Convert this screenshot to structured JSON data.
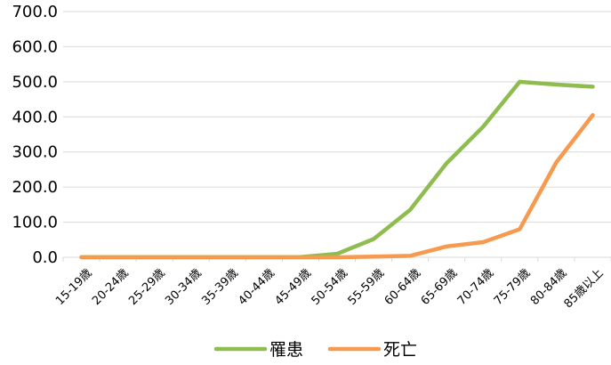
{
  "chart_data": {
    "type": "line",
    "title": "",
    "xlabel": "",
    "ylabel": "",
    "categories": [
      "15-19歳",
      "20-24歳",
      "25-29歳",
      "30-34歳",
      "35-39歳",
      "40-44歳",
      "45-49歳",
      "50-54歳",
      "55-59歳",
      "60-64歳",
      "65-69歳",
      "70-74歳",
      "75-79歳",
      "80-84歳",
      "85歳以上"
    ],
    "y_ticks": [
      "0.0",
      "100.0",
      "200.0",
      "300.0",
      "400.0",
      "500.0",
      "600.0",
      "700.0"
    ],
    "ylim": [
      0,
      700
    ],
    "grid": true,
    "legend_position": "bottom",
    "series": [
      {
        "name": "罹患",
        "color": "#8fbc4e",
        "values": [
          0.2,
          0.3,
          0.3,
          0.3,
          0.3,
          0.3,
          0.5,
          10.0,
          52.0,
          135.0,
          268.0,
          372.0,
          500.0,
          492.0,
          486.0
        ]
      },
      {
        "name": "死亡",
        "color": "#f79a4f",
        "values": [
          0.0,
          0.0,
          0.0,
          0.0,
          0.0,
          0.0,
          0.0,
          0.0,
          2.0,
          4.0,
          31.0,
          43.0,
          80.0,
          270.0,
          405.0
        ]
      }
    ]
  }
}
